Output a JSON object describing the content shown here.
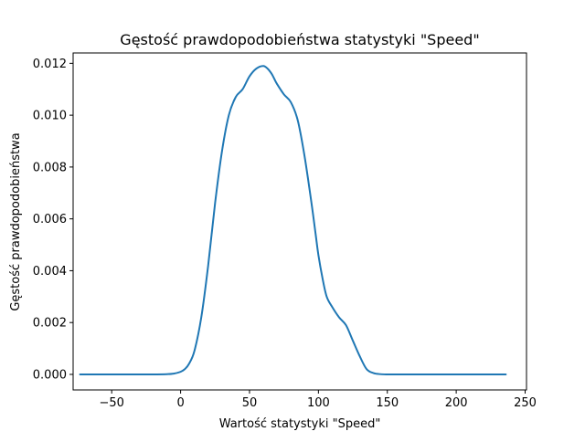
{
  "chart_data": {
    "type": "line",
    "title": "Gęstość prawdopodobieństwa statystyki \"Speed\"",
    "xlabel": "Wartość statystyki \"Speed\"",
    "ylabel": "Gęstość prawdopodobieństwa",
    "xlim": [
      -78,
      251
    ],
    "ylim": [
      -0.0006,
      0.0124
    ],
    "grid": false,
    "x_ticks": [
      -50,
      0,
      50,
      100,
      150,
      200,
      250
    ],
    "x_tick_labels": [
      "−50",
      "0",
      "50",
      "100",
      "150",
      "200",
      "250"
    ],
    "y_ticks": [
      0.0,
      0.002,
      0.004,
      0.006,
      0.008,
      0.01,
      0.012
    ],
    "y_tick_labels": [
      "0.000",
      "0.002",
      "0.004",
      "0.006",
      "0.008",
      "0.010",
      "0.012"
    ],
    "series": [
      {
        "color": "#1f77b4",
        "x": [
          -73,
          -40,
          -20,
          -10,
          -5,
          0,
          3,
          6,
          10,
          15,
          20,
          25,
          30,
          35,
          40,
          45,
          50,
          55,
          60,
          63,
          66,
          68,
          70,
          75,
          80,
          85,
          90,
          95,
          98,
          100,
          103,
          106,
          110,
          115,
          120,
          125,
          130,
          135,
          140,
          145,
          150,
          155,
          160,
          165,
          170,
          180,
          200,
          236
        ],
        "y": [
          0.0,
          0.0,
          0.0,
          1e-05,
          3e-05,
          0.0001,
          0.0002,
          0.0004,
          0.0009,
          0.0022,
          0.0042,
          0.0066,
          0.0086,
          0.01,
          0.0107,
          0.011,
          0.0115,
          0.0118,
          0.0119,
          0.0118,
          0.0116,
          0.0114,
          0.0112,
          0.0108,
          0.0105,
          0.0098,
          0.0084,
          0.0066,
          0.0054,
          0.0046,
          0.0037,
          0.003,
          0.0026,
          0.0022,
          0.0019,
          0.0013,
          0.0007,
          0.0002,
          5e-05,
          1e-05,
          0.0,
          0.0,
          0.0,
          0.0,
          0.0,
          0.0,
          0.0,
          0.0
        ]
      }
    ]
  }
}
